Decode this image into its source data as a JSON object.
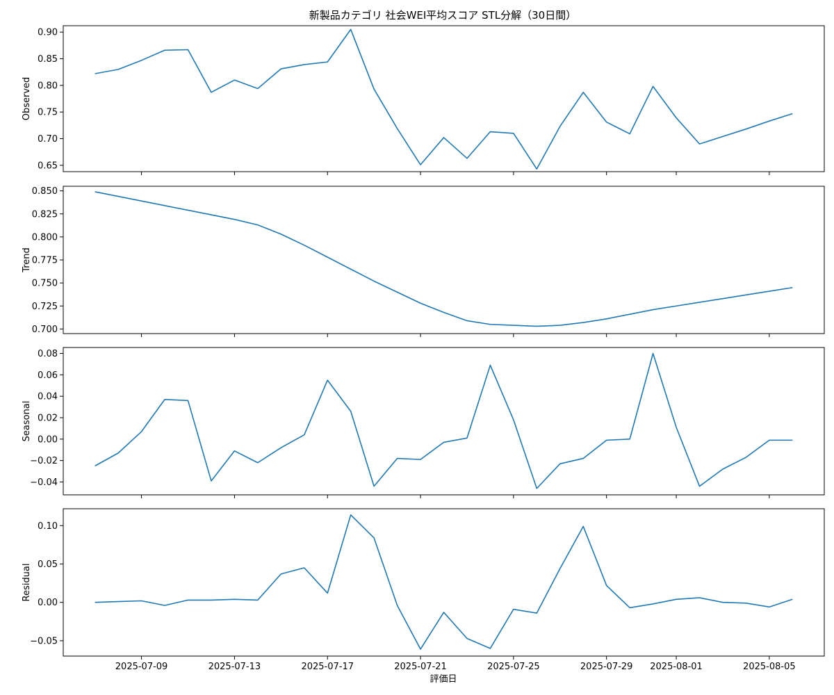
{
  "chart_data": {
    "type": "line",
    "title": "新製品カテゴリ 社会WEI平均スコア STL分解（30日間）",
    "xlabel": "評価日",
    "series_color": "#1f77b4",
    "x": [
      "2025-07-07",
      "2025-07-08",
      "2025-07-09",
      "2025-07-10",
      "2025-07-11",
      "2025-07-12",
      "2025-07-13",
      "2025-07-14",
      "2025-07-15",
      "2025-07-16",
      "2025-07-17",
      "2025-07-18",
      "2025-07-19",
      "2025-07-20",
      "2025-07-21",
      "2025-07-22",
      "2025-07-23",
      "2025-07-24",
      "2025-07-25",
      "2025-07-26",
      "2025-07-27",
      "2025-07-28",
      "2025-07-29",
      "2025-07-30",
      "2025-07-31",
      "2025-08-01",
      "2025-08-02",
      "2025-08-03",
      "2025-08-04",
      "2025-08-05",
      "2025-08-06"
    ],
    "x_tick_labels": [
      "2025-07-09",
      "2025-07-13",
      "2025-07-17",
      "2025-07-21",
      "2025-07-25",
      "2025-07-29",
      "2025-08-01",
      "2025-08-05"
    ],
    "panels": [
      {
        "ylabel": "Observed",
        "ylim": [
          0.638,
          0.912
        ],
        "y_ticks": [
          "0.65",
          "0.70",
          "0.75",
          "0.80",
          "0.85",
          "0.90"
        ],
        "values": [
          0.822,
          0.83,
          0.847,
          0.866,
          0.867,
          0.787,
          0.81,
          0.794,
          0.831,
          0.839,
          0.844,
          0.905,
          0.793,
          0.719,
          0.651,
          0.702,
          0.663,
          0.713,
          0.71,
          0.643,
          0.723,
          0.787,
          0.731,
          0.709,
          0.798,
          0.739,
          0.69,
          0.704,
          0.718,
          0.733,
          0.747
        ]
      },
      {
        "ylabel": "Trend",
        "ylim": [
          0.695,
          0.855
        ],
        "y_ticks": [
          "0.700",
          "0.725",
          "0.750",
          "0.775",
          "0.800",
          "0.825",
          "0.850"
        ],
        "values": [
          0.849,
          0.844,
          0.839,
          0.834,
          0.829,
          0.824,
          0.819,
          0.813,
          0.803,
          0.791,
          0.778,
          0.765,
          0.752,
          0.74,
          0.728,
          0.718,
          0.709,
          0.705,
          0.704,
          0.703,
          0.704,
          0.707,
          0.711,
          0.716,
          0.721,
          0.725,
          0.729,
          0.733,
          0.737,
          0.741,
          0.745
        ]
      },
      {
        "ylabel": "Seasonal",
        "ylim": [
          -0.052,
          0.0855
        ],
        "y_ticks": [
          "−0.04",
          "−0.02",
          "0.00",
          "0.02",
          "0.04",
          "0.06",
          "0.08"
        ],
        "values": [
          -0.025,
          -0.013,
          0.007,
          0.037,
          0.036,
          -0.039,
          -0.011,
          -0.022,
          -0.008,
          0.004,
          0.055,
          0.026,
          -0.044,
          -0.018,
          -0.019,
          -0.003,
          0.001,
          0.069,
          0.018,
          -0.046,
          -0.023,
          -0.018,
          -0.001,
          0.0,
          0.08,
          0.011,
          -0.044,
          -0.028,
          -0.017,
          -0.001,
          -0.001
        ]
      },
      {
        "ylabel": "Residual",
        "ylim": [
          -0.07,
          0.122
        ],
        "y_ticks": [
          "−0.05",
          "0.00",
          "0.05",
          "0.10"
        ],
        "values": [
          0.0,
          0.001,
          0.002,
          -0.004,
          0.003,
          0.003,
          0.004,
          0.003,
          0.037,
          0.045,
          0.012,
          0.114,
          0.084,
          -0.004,
          -0.061,
          -0.013,
          -0.047,
          -0.06,
          -0.009,
          -0.014,
          0.044,
          0.099,
          0.022,
          -0.007,
          -0.002,
          0.004,
          0.006,
          0.0,
          -0.001,
          -0.006,
          0.004
        ]
      }
    ]
  }
}
